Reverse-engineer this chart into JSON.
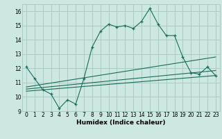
{
  "xlabel": "Humidex (Indice chaleur)",
  "bg_color": "#cce8e0",
  "grid_color": "#aaccc4",
  "line_color": "#1a6b5a",
  "xlim": [
    -0.5,
    23.5
  ],
  "ylim": [
    9,
    16.5
  ],
  "xticks": [
    0,
    1,
    2,
    3,
    4,
    5,
    6,
    7,
    8,
    9,
    10,
    11,
    12,
    13,
    14,
    15,
    16,
    17,
    18,
    19,
    20,
    21,
    22,
    23
  ],
  "yticks": [
    9,
    10,
    11,
    12,
    13,
    14,
    15,
    16
  ],
  "line1_x": [
    0,
    1,
    2,
    3,
    4,
    5,
    6,
    7,
    8,
    9,
    10,
    11,
    12,
    13,
    14,
    15,
    16,
    17,
    18,
    19,
    20,
    21,
    22,
    23
  ],
  "line1_y": [
    12.1,
    11.3,
    10.5,
    10.2,
    9.2,
    9.8,
    9.5,
    11.3,
    13.5,
    14.6,
    15.1,
    14.9,
    15.0,
    14.8,
    15.3,
    16.2,
    15.1,
    14.3,
    14.3,
    12.8,
    11.7,
    11.6,
    12.1,
    11.5
  ],
  "line2_x": [
    0,
    23
  ],
  "line2_y": [
    10.4,
    11.5
  ],
  "line3_x": [
    0,
    23
  ],
  "line3_y": [
    10.55,
    11.85
  ],
  "line4_x": [
    0,
    23
  ],
  "line4_y": [
    10.7,
    12.8
  ]
}
